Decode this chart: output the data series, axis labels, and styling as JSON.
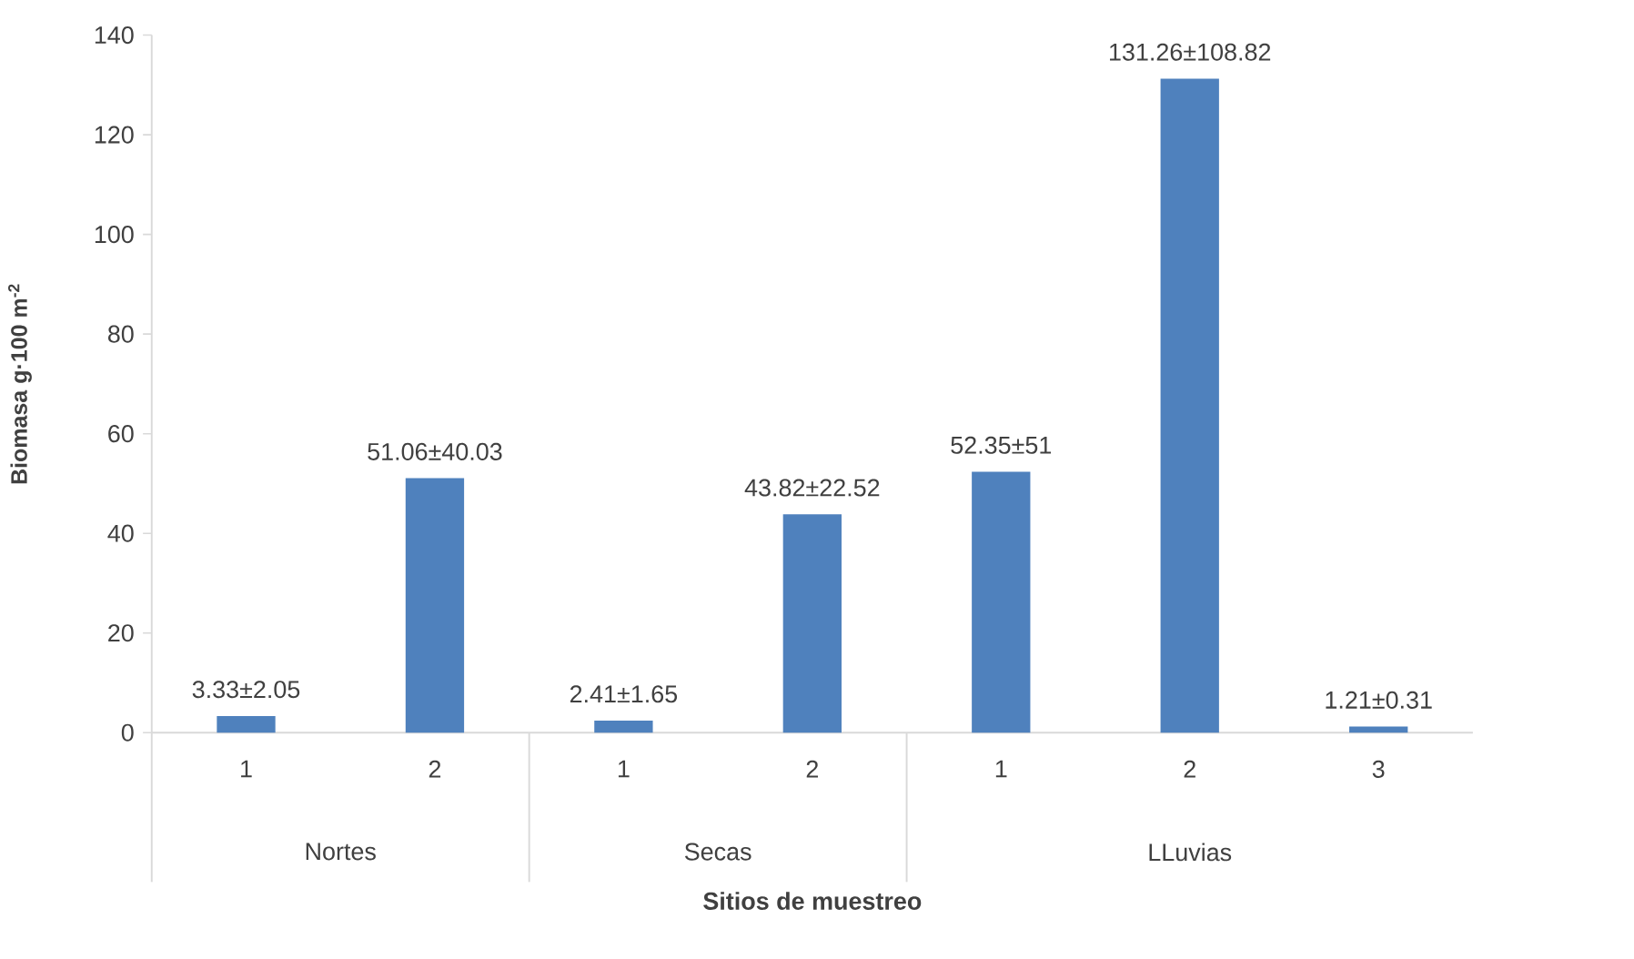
{
  "chart_data": {
    "type": "bar",
    "xlabel": "Sitios de muestreo",
    "ylabel": "Biomasa g·100 m$^{-2}$",
    "categories": [
      "1",
      "2",
      "1",
      "2",
      "1",
      "2",
      "3"
    ],
    "values": [
      3.33,
      51.06,
      2.41,
      43.82,
      52.35,
      131.26,
      1.21
    ],
    "value_labels": [
      "3.33±2.05",
      "51.06±40.03",
      "2.41±1.65",
      "43.82±22.52",
      "52.35±51",
      "131.26±108.82",
      "1.21±0.31"
    ],
    "color": "#4f81bd",
    "ylim": [
      0,
      140
    ],
    "yticks": [
      0,
      20,
      40,
      60,
      80,
      100,
      120,
      140
    ],
    "annotations": [
      "Nortes",
      "Secas",
      "LLuvias"
    ],
    "grid": false
  }
}
